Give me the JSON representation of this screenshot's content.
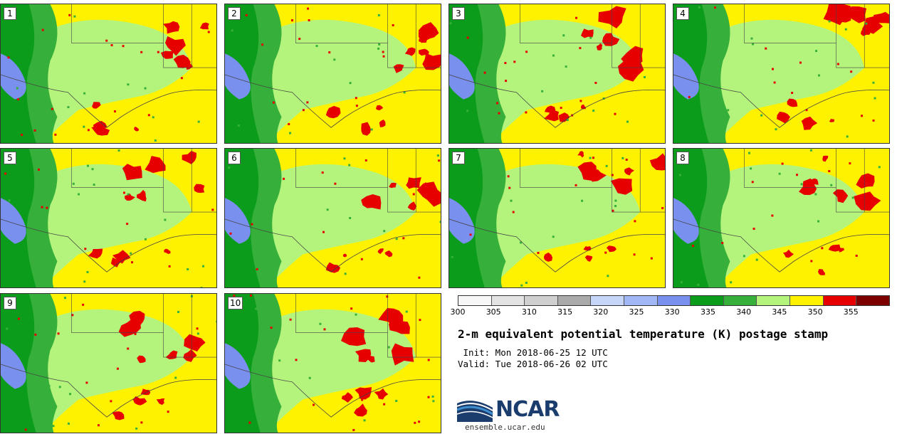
{
  "panels": [
    {
      "id": "1",
      "seed": 11
    },
    {
      "id": "2",
      "seed": 23
    },
    {
      "id": "3",
      "seed": 37
    },
    {
      "id": "4",
      "seed": 41
    },
    {
      "id": "5",
      "seed": 53
    },
    {
      "id": "6",
      "seed": 67
    },
    {
      "id": "7",
      "seed": 71
    },
    {
      "id": "8",
      "seed": 83
    },
    {
      "id": "9",
      "seed": 97
    },
    {
      "id": "10",
      "seed": 101
    }
  ],
  "colorbar": {
    "ticks": [
      "300",
      "305",
      "310",
      "315",
      "320",
      "325",
      "330",
      "335",
      "340",
      "345",
      "350",
      "355"
    ],
    "colors": [
      "#f7f7f7",
      "#e3e3e3",
      "#cfcfcf",
      "#aaaaaa",
      "#c6d6f8",
      "#a2b8f6",
      "#7a90ee",
      "#0c9c1c",
      "#36b03a",
      "#b4f47c",
      "#fff200",
      "#e60000",
      "#7d0000"
    ]
  },
  "title": "2-m equivalent potential temperature (K) postage stamp",
  "init": " Init: Mon 2018-06-25 12 UTC",
  "valid": "Valid: Tue 2018-06-26 02 UTC",
  "logo": {
    "text": "NCAR",
    "colors": {
      "swoosh_dark": "#1a3d6e",
      "swoosh_light": "#3f8fd0"
    }
  },
  "site": "ensemble.ucar.edu",
  "map_colors": {
    "yellow": "#fff200",
    "light_green": "#b4f47c",
    "green": "#36b03a",
    "dark_green": "#0c9c1c",
    "blue": "#7a90ee",
    "red": "#e60000",
    "dark_red": "#7d0000",
    "border": "#444444"
  }
}
